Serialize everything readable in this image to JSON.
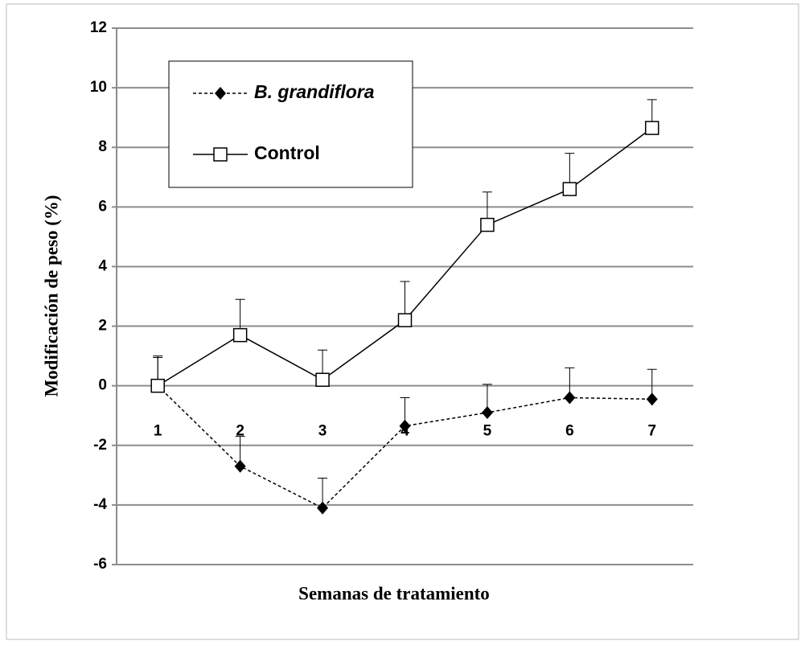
{
  "chart_data": {
    "type": "line",
    "ylabel": "Modificación de peso (%)",
    "xlabel": "Semanas de tratamiento",
    "categories": [
      "1",
      "2",
      "3",
      "4",
      "5",
      "6",
      "7"
    ],
    "ylim": [
      -6,
      12
    ],
    "yticks": [
      -6,
      -4,
      -2,
      0,
      2,
      4,
      6,
      8,
      10,
      12
    ],
    "grid": true,
    "series": [
      {
        "name": "B. grandiflora",
        "color": "#000000",
        "dashed": true,
        "marker": "diamond",
        "values": [
          0,
          -2.7,
          -4.1,
          -1.35,
          -0.9,
          -0.4,
          -0.45
        ],
        "errors": [
          1.0,
          1.0,
          1.0,
          0.95,
          0.95,
          1.0,
          1.0
        ]
      },
      {
        "name": "Control",
        "color": "#000000",
        "dashed": false,
        "marker": "square",
        "values": [
          0,
          1.7,
          0.2,
          2.2,
          5.4,
          6.6,
          8.65
        ],
        "errors": [
          0.95,
          1.2,
          1.0,
          1.3,
          1.1,
          1.2,
          0.95
        ]
      }
    ]
  }
}
